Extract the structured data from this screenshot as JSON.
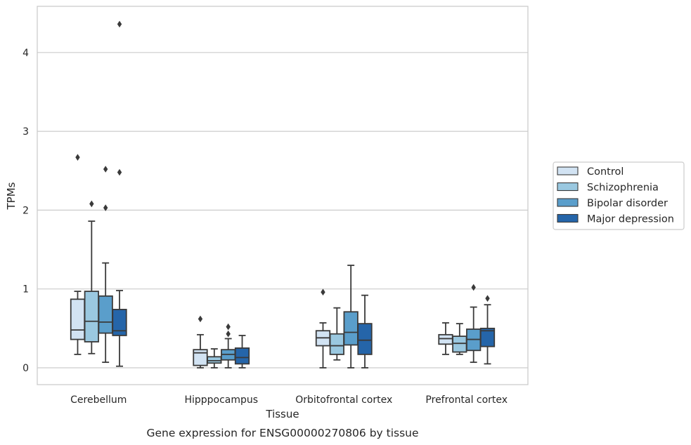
{
  "chart_data": {
    "type": "box",
    "title": "",
    "caption": "Gene expression for ENSG00000270806 by tissue",
    "xlabel": "Tissue",
    "ylabel": "TPMs",
    "ylim": [
      -0.21,
      4.58
    ],
    "yticks": [
      0,
      1,
      2,
      3,
      4
    ],
    "grid": "horizontal",
    "legend_position": "right",
    "categories": [
      "Cerebellum",
      "Hipppocampus",
      "Orbitofrontal cortex",
      "Prefrontal cortex"
    ],
    "series": [
      {
        "name": "Control",
        "color": "#d2e3f3",
        "boxes": [
          {
            "whisker_low": 0.17,
            "q1": 0.36,
            "median": 0.48,
            "q3": 0.87,
            "whisker_high": 0.97,
            "outliers": [
              2.67
            ]
          },
          {
            "whisker_low": 0.0,
            "q1": 0.03,
            "median": 0.19,
            "q3": 0.23,
            "whisker_high": 0.42,
            "outliers": [
              0.62
            ]
          },
          {
            "whisker_low": 0.0,
            "q1": 0.28,
            "median": 0.38,
            "q3": 0.47,
            "whisker_high": 0.57,
            "outliers": [
              0.96
            ]
          },
          {
            "whisker_low": 0.17,
            "q1": 0.3,
            "median": 0.37,
            "q3": 0.42,
            "whisker_high": 0.57,
            "outliers": []
          }
        ]
      },
      {
        "name": "Schizophrenia",
        "color": "#9ac8e0",
        "boxes": [
          {
            "whisker_low": 0.18,
            "q1": 0.33,
            "median": 0.59,
            "q3": 0.97,
            "whisker_high": 1.86,
            "outliers": [
              2.08
            ]
          },
          {
            "whisker_low": 0.0,
            "q1": 0.06,
            "median": 0.09,
            "q3": 0.14,
            "whisker_high": 0.24,
            "outliers": []
          },
          {
            "whisker_low": 0.1,
            "q1": 0.17,
            "median": 0.28,
            "q3": 0.43,
            "whisker_high": 0.76,
            "outliers": []
          },
          {
            "whisker_low": 0.17,
            "q1": 0.2,
            "median": 0.31,
            "q3": 0.4,
            "whisker_high": 0.56,
            "outliers": []
          }
        ]
      },
      {
        "name": "Bipolar disorder",
        "color": "#5a9ecb",
        "boxes": [
          {
            "whisker_low": 0.07,
            "q1": 0.44,
            "median": 0.58,
            "q3": 0.91,
            "whisker_high": 1.33,
            "outliers": [
              2.03,
              2.52
            ]
          },
          {
            "whisker_low": 0.0,
            "q1": 0.1,
            "median": 0.17,
            "q3": 0.23,
            "whisker_high": 0.37,
            "outliers": [
              0.43,
              0.52
            ]
          },
          {
            "whisker_low": 0.0,
            "q1": 0.29,
            "median": 0.45,
            "q3": 0.71,
            "whisker_high": 1.3,
            "outliers": []
          },
          {
            "whisker_low": 0.07,
            "q1": 0.22,
            "median": 0.36,
            "q3": 0.49,
            "whisker_high": 0.77,
            "outliers": [
              1.02
            ]
          }
        ]
      },
      {
        "name": "Major depression",
        "color": "#2565a9",
        "boxes": [
          {
            "whisker_low": 0.02,
            "q1": 0.41,
            "median": 0.47,
            "q3": 0.74,
            "whisker_high": 0.98,
            "outliers": [
              2.48,
              4.36
            ]
          },
          {
            "whisker_low": 0.0,
            "q1": 0.05,
            "median": 0.13,
            "q3": 0.25,
            "whisker_high": 0.41,
            "outliers": []
          },
          {
            "whisker_low": 0.0,
            "q1": 0.17,
            "median": 0.35,
            "q3": 0.56,
            "whisker_high": 0.92,
            "outliers": []
          },
          {
            "whisker_low": 0.05,
            "q1": 0.27,
            "median": 0.47,
            "q3": 0.5,
            "whisker_high": 0.8,
            "outliers": [
              0.88
            ]
          }
        ]
      }
    ]
  },
  "colors": {
    "grid": "#cccccc",
    "frame": "#cccccc",
    "box_edge": "#3a3a3a",
    "legend_border": "#cccccc"
  }
}
